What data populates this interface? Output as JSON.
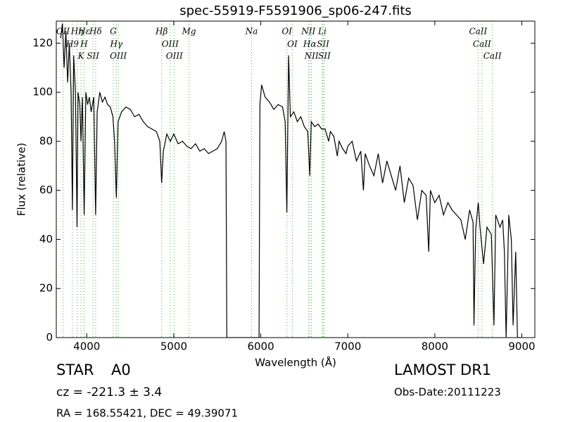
{
  "chart_data": {
    "type": "line",
    "title": "spec-55919-F5591906_sp06-247.fits",
    "xlabel": "Wavelength (Å)",
    "ylabel": "Flux (relative)",
    "xlim": [
      3650,
      9150
    ],
    "ylim": [
      0,
      129
    ],
    "xticks": [
      4000,
      5000,
      6000,
      7000,
      8000,
      9000
    ],
    "yticks": [
      0,
      20,
      40,
      60,
      80,
      100,
      120
    ],
    "color": "#000000",
    "line_color": "#4daf4a",
    "x": [
      3700,
      3720,
      3740,
      3760,
      3780,
      3800,
      3820,
      3835,
      3850,
      3870,
      3889,
      3900,
      3920,
      3934,
      3950,
      3970,
      3990,
      4010,
      4030,
      4050,
      4080,
      4102,
      4120,
      4150,
      4180,
      4210,
      4240,
      4270,
      4300,
      4320,
      4340,
      4360,
      4400,
      4450,
      4500,
      4550,
      4600,
      4650,
      4700,
      4750,
      4800,
      4840,
      4861,
      4880,
      4920,
      4960,
      5000,
      5050,
      5100,
      5150,
      5200,
      5250,
      5300,
      5350,
      5400,
      5450,
      5500,
      5550,
      5580,
      5600,
      5610,
      5700,
      5800,
      5900,
      5980,
      5990,
      6010,
      6050,
      6100,
      6150,
      6200,
      6250,
      6280,
      6300,
      6320,
      6340,
      6380,
      6420,
      6460,
      6500,
      6540,
      6563,
      6580,
      6620,
      6660,
      6700,
      6740,
      6780,
      6800,
      6840,
      6880,
      6900,
      6940,
      6980,
      7000,
      7050,
      7100,
      7150,
      7180,
      7200,
      7250,
      7300,
      7350,
      7400,
      7450,
      7500,
      7550,
      7600,
      7650,
      7700,
      7750,
      7800,
      7850,
      7900,
      7930,
      7950,
      8000,
      8050,
      8100,
      8150,
      8200,
      8250,
      8300,
      8350,
      8400,
      8440,
      8450,
      8470,
      8500,
      8520,
      8560,
      8600,
      8650,
      8680,
      8700,
      8750,
      8780,
      8800,
      8820,
      8850,
      8880,
      8900,
      8930,
      8950,
      8970,
      9000
    ],
    "values": [
      122,
      128,
      110,
      125,
      104,
      120,
      100,
      52,
      115,
      100,
      45,
      100,
      95,
      80,
      98,
      50,
      100,
      95,
      98,
      92,
      98,
      50,
      92,
      100,
      96,
      98,
      95,
      94,
      90,
      80,
      57,
      88,
      92,
      94,
      93,
      90,
      91,
      88,
      86,
      85,
      84,
      80,
      63,
      76,
      83,
      80,
      83,
      79,
      80,
      78,
      77,
      79,
      76,
      77,
      75,
      76,
      77,
      80,
      84,
      80,
      0,
      0,
      0,
      0,
      0,
      95,
      103,
      98,
      96,
      93,
      95,
      94,
      88,
      51,
      115,
      90,
      92,
      88,
      90,
      86,
      84,
      66,
      88,
      86,
      87,
      85,
      85,
      80,
      84,
      82,
      74,
      80,
      77,
      75,
      78,
      80,
      72,
      76,
      60,
      75,
      70,
      66,
      75,
      63,
      72,
      66,
      60,
      70,
      55,
      65,
      62,
      48,
      60,
      58,
      35,
      60,
      55,
      58,
      50,
      55,
      52,
      50,
      48,
      40,
      52,
      47,
      5,
      44,
      55,
      45,
      30,
      45,
      42,
      5,
      50,
      45,
      48,
      35,
      0,
      50,
      40,
      5,
      35,
      0,
      0,
      0
    ],
    "spectral_lines": [
      {
        "label": "OII",
        "wavelength": 3727
      },
      {
        "label": "H9",
        "wavelength": 3835
      },
      {
        "label": "Hη",
        "wavelength": 3889
      },
      {
        "label": "K",
        "wavelength": 3934
      },
      {
        "label": "H",
        "wavelength": 3969
      },
      {
        "label": "Hε",
        "wavelength": 3970
      },
      {
        "label": "SII",
        "wavelength": 4072
      },
      {
        "label": "Hδ",
        "wavelength": 4102
      },
      {
        "label": "G",
        "wavelength": 4305
      },
      {
        "label": "Hγ",
        "wavelength": 4340
      },
      {
        "label": "OIII",
        "wavelength": 4363
      },
      {
        "label": "Hβ",
        "wavelength": 4861
      },
      {
        "label": "OIII",
        "wavelength": 4959
      },
      {
        "label": "OIII",
        "wavelength": 5007
      },
      {
        "label": "Mg",
        "wavelength": 5175
      },
      {
        "label": "Na",
        "wavelength": 5894
      },
      {
        "label": "OI",
        "wavelength": 6300
      },
      {
        "label": "OI",
        "wavelength": 6363
      },
      {
        "label": "NII",
        "wavelength": 6548
      },
      {
        "label": "Hα",
        "wavelength": 6563
      },
      {
        "label": "NII",
        "wavelength": 6583
      },
      {
        "label": "Li",
        "wavelength": 6707
      },
      {
        "label": "SII",
        "wavelength": 6716
      },
      {
        "label": "SII",
        "wavelength": 6731
      },
      {
        "label": "CaII",
        "wavelength": 8498
      },
      {
        "label": "CaII",
        "wavelength": 8542
      },
      {
        "label": "CaII",
        "wavelength": 8662
      }
    ]
  },
  "footer": {
    "class": "STAR",
    "subclass": "A0",
    "cz": "cz = -221.3 ± 3.4",
    "coords": "RA = 168.55421, DEC = 49.39071",
    "survey": "LAMOST DR1",
    "obs_date": "Obs-Date:20111223"
  }
}
